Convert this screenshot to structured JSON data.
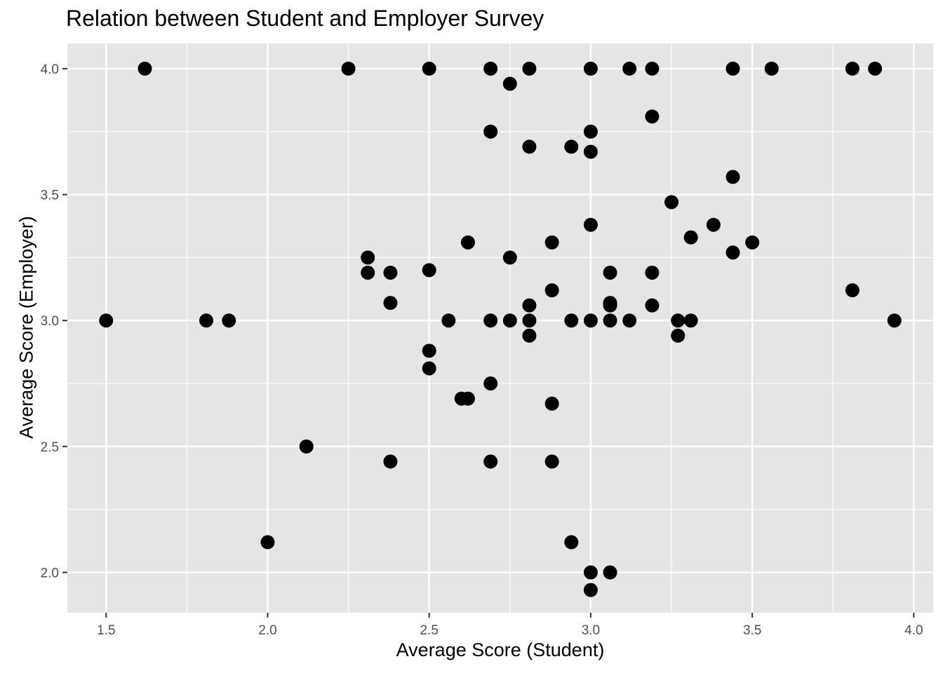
{
  "chart_data": {
    "type": "scatter",
    "title": "Relation between Student and Employer Survey",
    "xlabel": "Average Score (Student)",
    "ylabel": "Average Score (Employer)",
    "xlim": [
      1.38,
      4.06
    ],
    "ylim": [
      1.84,
      4.1
    ],
    "x_ticks": [
      "1.5",
      "2.0",
      "2.5",
      "3.0",
      "3.5",
      "4.0"
    ],
    "y_ticks": [
      "2.0",
      "2.5",
      "3.0",
      "3.5",
      "4.0"
    ],
    "grid": true,
    "background": "#e5e5e5",
    "grid_color": "#ffffff",
    "point_color": "#000000",
    "points": [
      {
        "x": 1.62,
        "y": 4.0
      },
      {
        "x": 2.25,
        "y": 4.0
      },
      {
        "x": 2.5,
        "y": 4.0
      },
      {
        "x": 2.69,
        "y": 4.0
      },
      {
        "x": 2.81,
        "y": 4.0
      },
      {
        "x": 3.0,
        "y": 4.0
      },
      {
        "x": 3.12,
        "y": 4.0
      },
      {
        "x": 3.19,
        "y": 4.0
      },
      {
        "x": 3.44,
        "y": 4.0
      },
      {
        "x": 3.56,
        "y": 4.0
      },
      {
        "x": 3.81,
        "y": 4.0
      },
      {
        "x": 3.88,
        "y": 4.0
      },
      {
        "x": 2.75,
        "y": 3.94
      },
      {
        "x": 3.19,
        "y": 3.81
      },
      {
        "x": 2.69,
        "y": 3.75
      },
      {
        "x": 3.0,
        "y": 3.75
      },
      {
        "x": 2.81,
        "y": 3.69
      },
      {
        "x": 2.94,
        "y": 3.69
      },
      {
        "x": 3.0,
        "y": 3.67
      },
      {
        "x": 3.44,
        "y": 3.57
      },
      {
        "x": 3.25,
        "y": 3.47
      },
      {
        "x": 3.0,
        "y": 3.38
      },
      {
        "x": 3.38,
        "y": 3.38
      },
      {
        "x": 3.31,
        "y": 3.33
      },
      {
        "x": 2.62,
        "y": 3.31
      },
      {
        "x": 2.88,
        "y": 3.31
      },
      {
        "x": 3.5,
        "y": 3.31
      },
      {
        "x": 3.44,
        "y": 3.27
      },
      {
        "x": 2.31,
        "y": 3.25
      },
      {
        "x": 2.75,
        "y": 3.25
      },
      {
        "x": 2.5,
        "y": 3.2
      },
      {
        "x": 2.31,
        "y": 3.19
      },
      {
        "x": 2.38,
        "y": 3.19
      },
      {
        "x": 3.06,
        "y": 3.19
      },
      {
        "x": 3.19,
        "y": 3.19
      },
      {
        "x": 2.88,
        "y": 3.12
      },
      {
        "x": 3.81,
        "y": 3.12
      },
      {
        "x": 2.38,
        "y": 3.07
      },
      {
        "x": 3.06,
        "y": 3.07
      },
      {
        "x": 2.81,
        "y": 3.06
      },
      {
        "x": 3.06,
        "y": 3.06
      },
      {
        "x": 3.19,
        "y": 3.06
      },
      {
        "x": 1.5,
        "y": 3.0
      },
      {
        "x": 1.81,
        "y": 3.0
      },
      {
        "x": 1.88,
        "y": 3.0
      },
      {
        "x": 2.56,
        "y": 3.0
      },
      {
        "x": 2.69,
        "y": 3.0
      },
      {
        "x": 2.75,
        "y": 3.0
      },
      {
        "x": 2.81,
        "y": 3.0
      },
      {
        "x": 2.94,
        "y": 3.0
      },
      {
        "x": 3.0,
        "y": 3.0
      },
      {
        "x": 3.06,
        "y": 3.0
      },
      {
        "x": 3.12,
        "y": 3.0
      },
      {
        "x": 3.27,
        "y": 3.0
      },
      {
        "x": 3.31,
        "y": 3.0
      },
      {
        "x": 3.94,
        "y": 3.0
      },
      {
        "x": 2.81,
        "y": 2.94
      },
      {
        "x": 3.27,
        "y": 2.94
      },
      {
        "x": 2.5,
        "y": 2.88
      },
      {
        "x": 2.5,
        "y": 2.81
      },
      {
        "x": 2.69,
        "y": 2.75
      },
      {
        "x": 2.6,
        "y": 2.69
      },
      {
        "x": 2.62,
        "y": 2.69
      },
      {
        "x": 2.88,
        "y": 2.67
      },
      {
        "x": 2.12,
        "y": 2.5
      },
      {
        "x": 2.38,
        "y": 2.44
      },
      {
        "x": 2.69,
        "y": 2.44
      },
      {
        "x": 2.88,
        "y": 2.44
      },
      {
        "x": 2.0,
        "y": 2.12
      },
      {
        "x": 2.94,
        "y": 2.12
      },
      {
        "x": 3.0,
        "y": 2.0
      },
      {
        "x": 3.06,
        "y": 2.0
      },
      {
        "x": 3.0,
        "y": 1.93
      }
    ]
  }
}
